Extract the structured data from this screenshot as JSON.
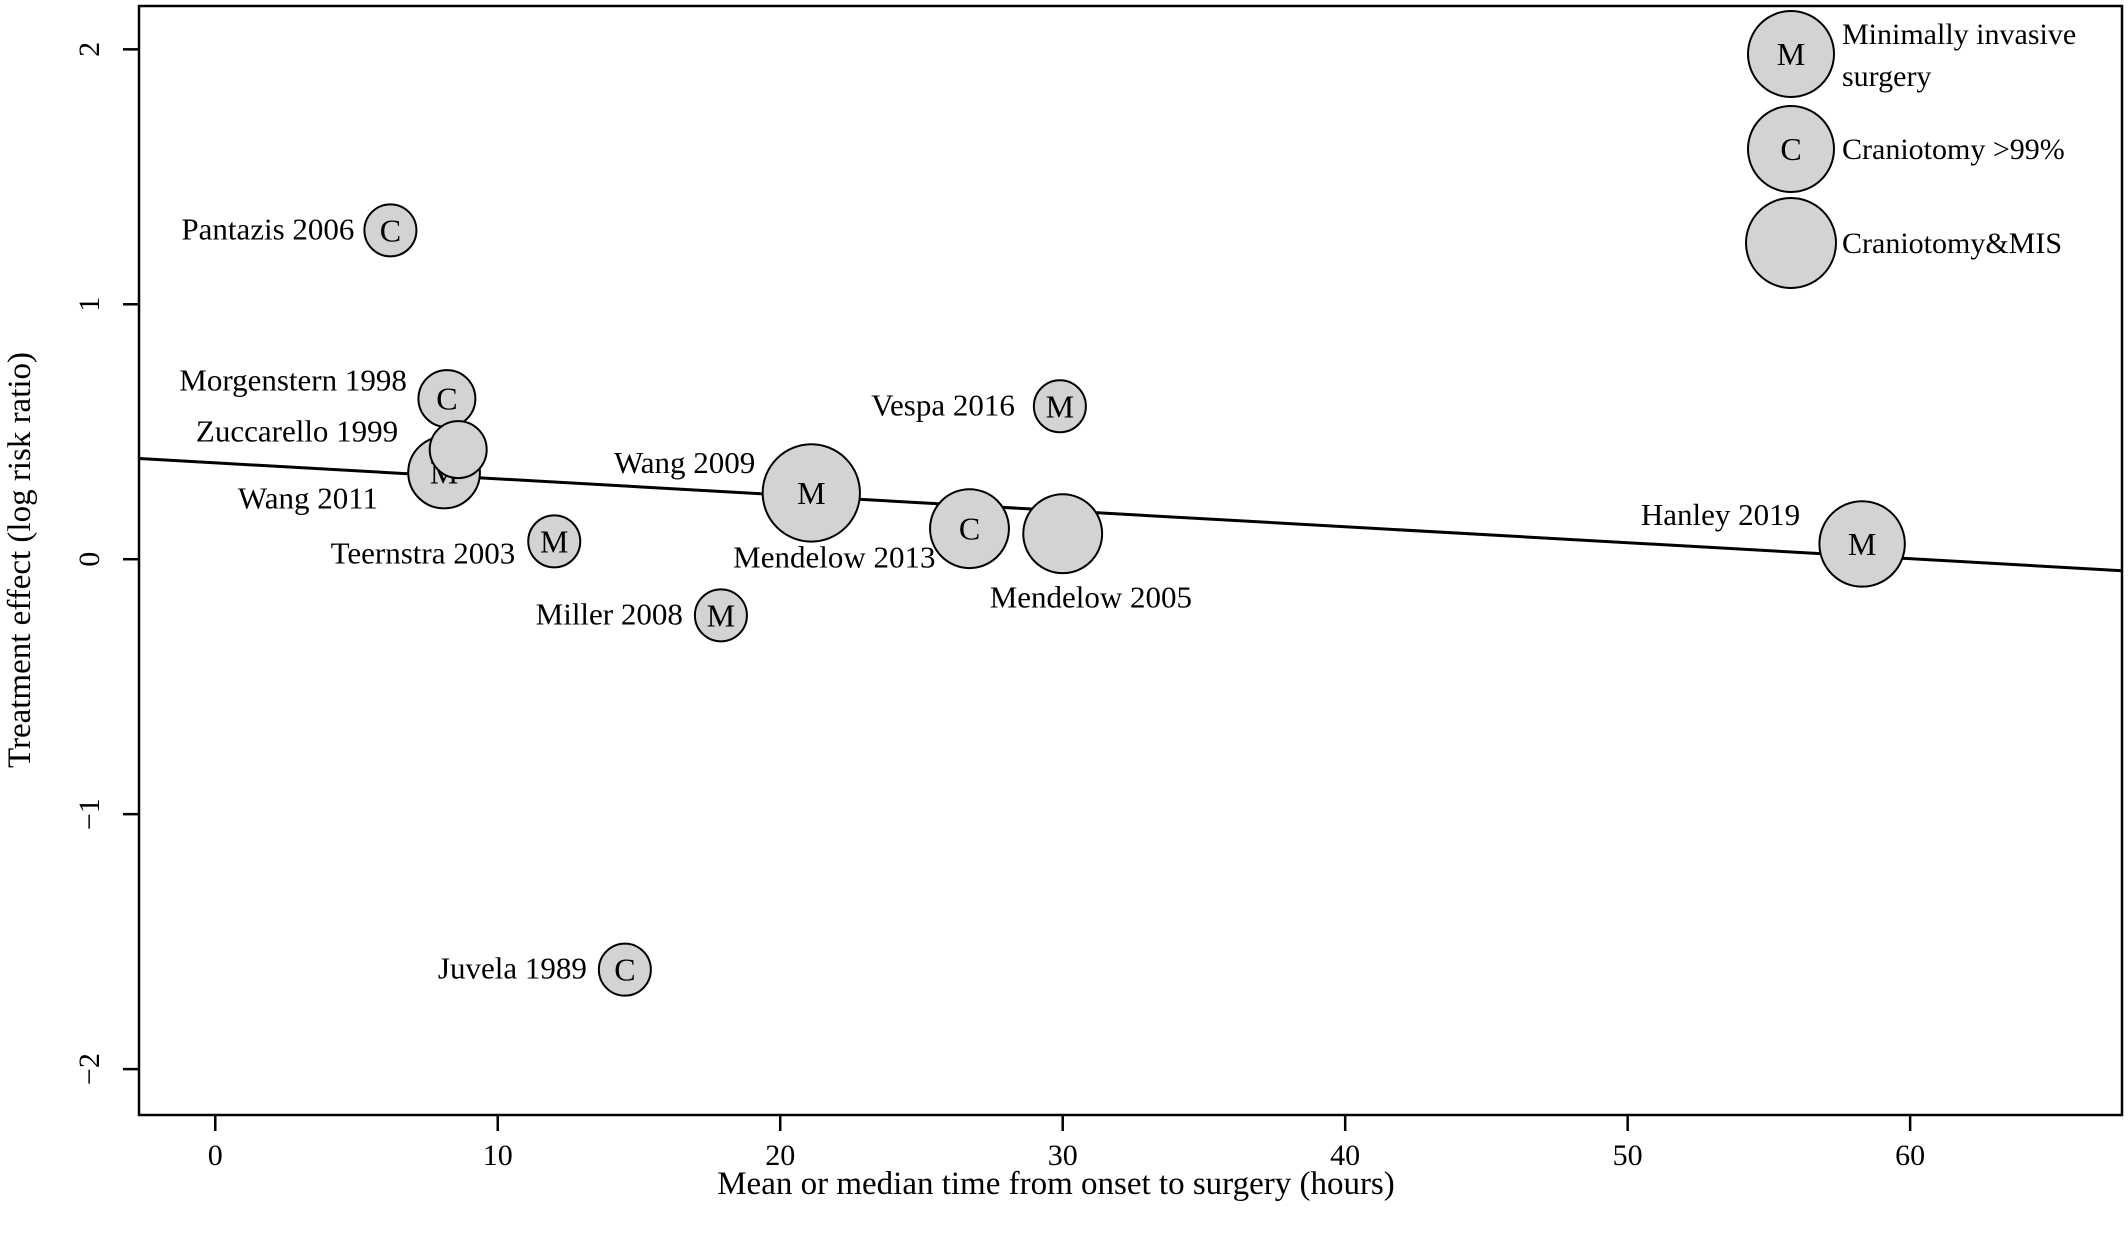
{
  "chart_data": {
    "type": "scatter",
    "subtype": "bubble",
    "title": "",
    "xlabel": "Mean or median time from onset to surgery (hours)",
    "ylabel": "Treatment effect (log risk ratio)",
    "xlim": [
      -2.7,
      67.5
    ],
    "ylim": [
      -2.18,
      2.17
    ],
    "xticks": [
      0,
      10,
      20,
      30,
      40,
      50,
      60
    ],
    "yticks": [
      -2,
      -1,
      0,
      1,
      2
    ],
    "ytick_labels": [
      "−2",
      "−1",
      "0",
      "1",
      "2"
    ],
    "grid": false,
    "bubble_fill": "#d3d3d3",
    "bubble_stroke": "#000000",
    "points": [
      {
        "label": "Pantazis 2006",
        "x": 6.2,
        "y": 1.29,
        "type": "C",
        "weight": 1.0
      },
      {
        "label": "Morgenstern 1998",
        "x": 8.2,
        "y": 0.63,
        "type": "C",
        "weight": 1.2
      },
      {
        "label": "Zuccarello 1999",
        "x": 8.6,
        "y": 0.43,
        "type": "",
        "weight": 1.2
      },
      {
        "label": "Wang 2011",
        "x": 8.1,
        "y": 0.34,
        "type": "M",
        "weight": 1.9
      },
      {
        "label": "Teernstra 2003",
        "x": 12.0,
        "y": 0.07,
        "type": "M",
        "weight": 1.0
      },
      {
        "label": "Miller 2008",
        "x": 17.9,
        "y": -0.22,
        "type": "M",
        "weight": 1.0
      },
      {
        "label": "Wang 2009",
        "x": 21.1,
        "y": 0.26,
        "type": "M",
        "weight": 3.5
      },
      {
        "label": "Mendelow 2013",
        "x": 26.7,
        "y": 0.12,
        "type": "C",
        "weight": 2.3
      },
      {
        "label": "Vespa 2016",
        "x": 29.9,
        "y": 0.6,
        "type": "M",
        "weight": 1.0
      },
      {
        "label": "Mendelow 2005",
        "x": 30.0,
        "y": 0.1,
        "type": "",
        "weight": 2.3
      },
      {
        "label": "Hanley 2019",
        "x": 58.3,
        "y": 0.06,
        "type": "M",
        "weight": 2.7
      },
      {
        "label": "Juvela 1989",
        "x": 14.5,
        "y": -1.61,
        "type": "C",
        "weight": 1.0
      }
    ],
    "regression_line": {
      "x": [
        -2.7,
        67.5
      ],
      "y": [
        0.395,
        -0.045
      ]
    },
    "legend": {
      "position": "top-right",
      "items": [
        {
          "symbol": "M",
          "label_lines": [
            "Minimally invasive",
            "surgery"
          ]
        },
        {
          "symbol": "C",
          "label_lines": [
            "Craniotomy >99%"
          ]
        },
        {
          "symbol": "",
          "label_lines": [
            "Craniotomy&MIS"
          ]
        }
      ]
    }
  }
}
